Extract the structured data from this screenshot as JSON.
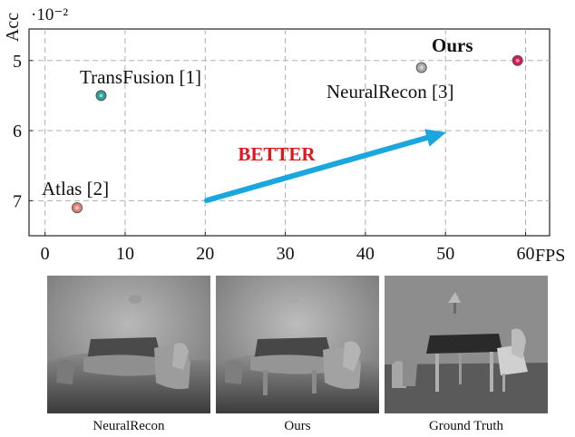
{
  "chart_data": {
    "type": "scatter",
    "xlabel": "FPS",
    "ylabel": "Acc",
    "y_multiplier_label": "·10⁻²",
    "xlim": [
      -2,
      63
    ],
    "ylim": [
      4.55,
      7.5
    ],
    "y_inverted": true,
    "grid": true,
    "x_ticks": [
      0,
      10,
      20,
      30,
      40,
      50,
      60
    ],
    "y_ticks": [
      5,
      6,
      7
    ],
    "points": [
      {
        "name": "TransFusion [1]",
        "x": 7,
        "y": 5.5,
        "color": "#2aa198"
      },
      {
        "name": "Atlas [2]",
        "x": 4,
        "y": 7.1,
        "color": "#e8827a"
      },
      {
        "name": "NeuralRecon [3]",
        "x": 47,
        "y": 5.1,
        "color": "#a9a9a9"
      },
      {
        "name": "Ours",
        "x": 59,
        "y": 5.0,
        "color": "#d6175c"
      }
    ],
    "annotation": {
      "text": "BETTER",
      "color": "#e0161e",
      "arrow_color": "#1aa7e0"
    }
  },
  "figure": {
    "panels": [
      {
        "caption": "NeuralRecon"
      },
      {
        "caption": "Ours"
      },
      {
        "caption": "Ground Truth"
      }
    ]
  }
}
